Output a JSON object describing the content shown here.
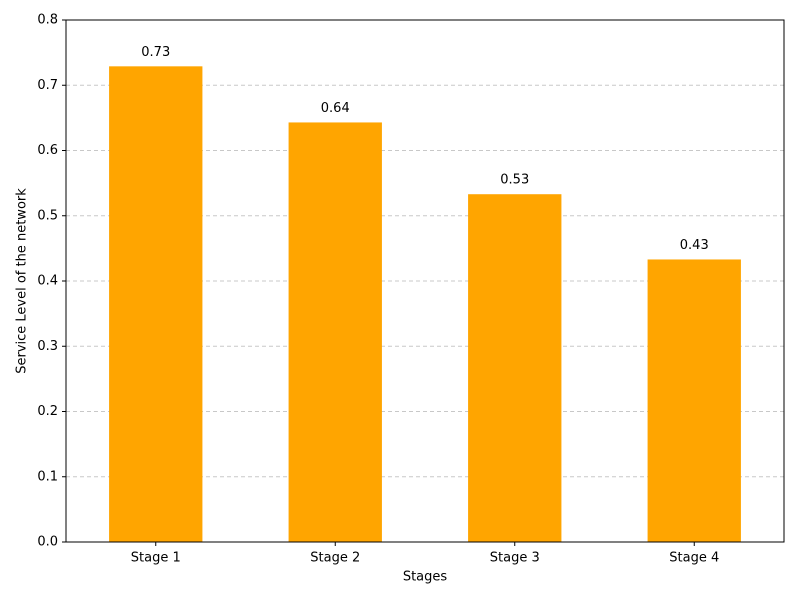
{
  "chart_data": {
    "type": "bar",
    "x_label": "Stages",
    "y_label": "Service Level of the network",
    "categories": [
      "Stage 1",
      "Stage 2",
      "Stage 3",
      "Stage 4"
    ],
    "values": [
      0.729,
      0.643,
      0.533,
      0.433
    ],
    "value_labels": [
      "0.73",
      "0.64",
      "0.53",
      "0.43"
    ],
    "color": "#ffa500",
    "ylim": [
      0,
      0.8
    ],
    "yticks": [
      {
        "value": 0,
        "label": "0.0"
      },
      0.1,
      0.2,
      0.3,
      0.4,
      0.5,
      0.6,
      0.7,
      0.8
    ],
    "grid": true
  }
}
